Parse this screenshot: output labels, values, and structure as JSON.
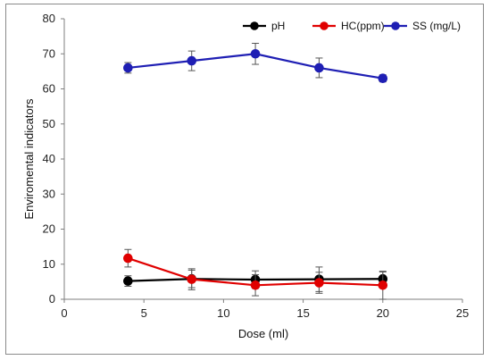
{
  "chart_data": {
    "type": "line",
    "title": "",
    "xlabel": "Dose (ml)",
    "ylabel": "Enviromental indicators",
    "xlim": [
      0,
      25
    ],
    "ylim": [
      0,
      80
    ],
    "x_ticks": [
      "0",
      "5",
      "10",
      "15",
      "20",
      "25"
    ],
    "y_ticks": [
      "0",
      "10",
      "20",
      "30",
      "40",
      "50",
      "60",
      "70",
      "80"
    ],
    "grid": false,
    "legend_position": "top-right",
    "x": [
      4,
      8,
      12,
      16,
      20
    ],
    "series": [
      {
        "name": "pH",
        "color": "#000000",
        "values": [
          5.2,
          5.8,
          5.6,
          5.7,
          5.8
        ],
        "errors": [
          1.5,
          2.5,
          2.5,
          3.5,
          2.0
        ]
      },
      {
        "name": "HC(ppm)",
        "color": "#e00000",
        "values": [
          11.7,
          5.7,
          4.0,
          4.7,
          4.0
        ],
        "errors": [
          2.5,
          3.0,
          3.0,
          3.0,
          4.0
        ]
      },
      {
        "name": "SS (mg/L)",
        "color": "#1f1fb4",
        "values": [
          66,
          68,
          70,
          66,
          63
        ],
        "errors": [
          1.5,
          2.8,
          3.0,
          2.8,
          1.0
        ]
      }
    ]
  }
}
